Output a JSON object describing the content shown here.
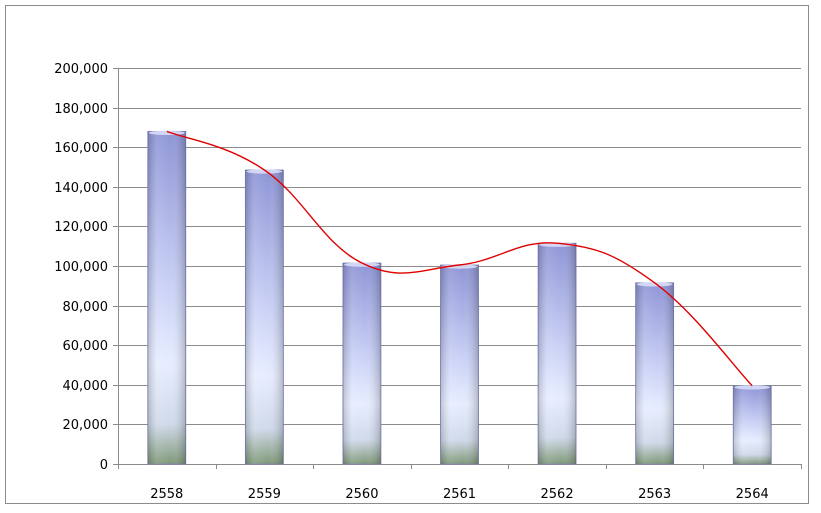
{
  "chart_data": {
    "type": "bar",
    "title": "",
    "xlabel": "",
    "ylabel": "",
    "categories": [
      "2558",
      "2559",
      "2560",
      "2561",
      "2562",
      "2563",
      "2564"
    ],
    "series": [
      {
        "values": [
          168000,
          148500,
          101500,
          100500,
          111500,
          91500,
          39500
        ]
      }
    ],
    "trendline": {
      "type": "smooth",
      "color": "#e00000"
    },
    "ylim": [
      0,
      200000
    ],
    "yticks": [
      0,
      20000,
      40000,
      60000,
      80000,
      100000,
      120000,
      140000,
      160000,
      180000,
      200000
    ],
    "ytick_labels": [
      "0",
      "20,000",
      "40,000",
      "60,000",
      "80,000",
      "100,000",
      "120,000",
      "140,000",
      "160,000",
      "180,000",
      "200,000"
    ],
    "grid": "horizontal",
    "legend": "none",
    "colors": {
      "bar_top": "#9fa5df",
      "bar_mid": "#e6ecff",
      "bar_base": "#8aa383",
      "grid": "#8c8c8c",
      "trend": "#e00000"
    }
  }
}
